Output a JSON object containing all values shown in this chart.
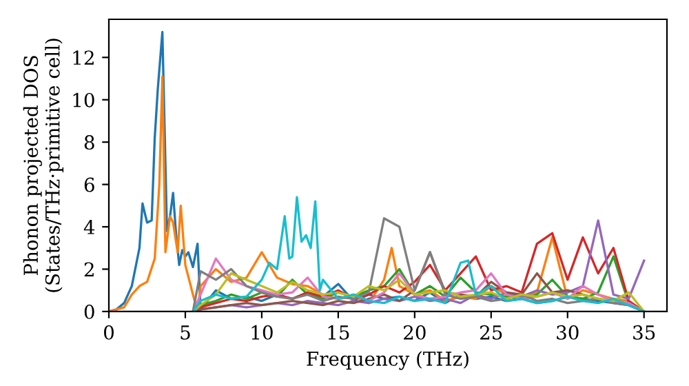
{
  "chart_data": {
    "type": "line",
    "xlabel": "Frequency (THz)",
    "ylabel": "Phonon projected DOS\n(States/THz·primitive cell)",
    "xlim": [
      0,
      36.5
    ],
    "ylim": [
      0,
      13.8
    ],
    "xticks": [
      0,
      5,
      10,
      15,
      20,
      25,
      30,
      35
    ],
    "yticks": [
      0,
      2,
      4,
      6,
      8,
      10,
      12
    ],
    "grid": false,
    "marker": "none",
    "line_style": "solid",
    "x": [
      5.5,
      6,
      7,
      8,
      9,
      10,
      11,
      12,
      13,
      14,
      15,
      16,
      17,
      18,
      19,
      20,
      21,
      22,
      23,
      24,
      25,
      26,
      27,
      28,
      29,
      30,
      31,
      32,
      33,
      34,
      35
    ],
    "series": [
      {
        "color": "#1f77b4",
        "x": [
          0,
          0.5,
          1,
          1.5,
          2,
          2.2,
          2.5,
          2.8,
          3,
          3.2,
          3.5,
          3.8,
          4,
          4.2,
          4.4,
          4.6,
          4.8,
          5,
          5.2,
          5.5,
          5.8,
          6,
          7,
          8,
          9,
          10,
          11,
          12,
          13,
          14,
          15,
          16,
          17,
          18,
          19,
          20,
          21,
          22,
          23,
          24,
          25,
          26,
          27,
          28,
          29,
          30,
          31,
          32,
          33,
          34,
          35
        ],
        "values": [
          0,
          0.1,
          0.4,
          1.2,
          3.0,
          5.1,
          4.2,
          4.3,
          8.2,
          10.5,
          13.2,
          3.8,
          4.5,
          5.6,
          3.6,
          2.2,
          2.9,
          2.6,
          2.8,
          2.1,
          3.2,
          0.1,
          1.0,
          0.6,
          0.7,
          0.5,
          0.8,
          0.6,
          0.9,
          0.7,
          1.3,
          0.5,
          0.8,
          0.6,
          0.7,
          0.5,
          0.9,
          0.4,
          0.8,
          0.6,
          0.7,
          0.5,
          0.6,
          0.4,
          0.5,
          0.7,
          0.6,
          0.5,
          0.4,
          0.3,
          0
        ]
      },
      {
        "color": "#ff7f0e",
        "x": [
          0,
          1,
          1.5,
          2,
          2.5,
          3,
          3.3,
          3.5,
          3.7,
          4,
          4.2,
          4.5,
          4.7,
          5,
          5.5,
          5.8,
          6,
          7,
          8,
          9,
          10,
          11,
          12,
          13,
          14,
          15,
          16,
          17,
          18,
          18.5,
          19,
          20,
          21,
          22,
          23,
          24,
          25,
          26,
          27,
          28,
          29,
          30,
          31,
          32,
          33,
          34,
          35
        ],
        "values": [
          0,
          0.2,
          0.8,
          1.2,
          1.4,
          2.5,
          6,
          11.1,
          2.8,
          4.5,
          4.2,
          2.8,
          5.0,
          2.2,
          0.8,
          0,
          1.2,
          2.0,
          1.4,
          1.6,
          2.8,
          1.6,
          1.3,
          1.2,
          0.8,
          0.6,
          0.7,
          0.4,
          1.5,
          3.0,
          1.2,
          0.8,
          1.0,
          0.5,
          0.7,
          0.6,
          1.2,
          0.8,
          0.7,
          0.9,
          3.5,
          0.6,
          1.0,
          0.8,
          0.6,
          0.5,
          0
        ]
      },
      {
        "color": "#2ca02c",
        "values": [
          0,
          0.3,
          0.5,
          0.8,
          0.6,
          0.9,
          0.7,
          1.5,
          0.8,
          0.6,
          0.9,
          0.7,
          1.0,
          1.2,
          2.0,
          0.8,
          1.2,
          0.7,
          1.6,
          0.9,
          0.8,
          0.7,
          0.6,
          0.8,
          1.5,
          0.7,
          0.6,
          0.9,
          2.6,
          0.4,
          0
        ]
      },
      {
        "color": "#d62728",
        "values": [
          0,
          0.2,
          0.4,
          0.6,
          0.5,
          0.7,
          0.8,
          0.6,
          0.9,
          0.7,
          1.0,
          0.6,
          0.8,
          1.2,
          0.9,
          1.4,
          2.2,
          1.0,
          1.8,
          2.6,
          1.0,
          1.2,
          0.9,
          3.2,
          3.7,
          1.5,
          3.5,
          1.8,
          3.0,
          0.5,
          0
        ]
      },
      {
        "color": "#9467bd",
        "values": [
          0,
          0.1,
          0.2,
          0.3,
          0.2,
          0.3,
          0.4,
          0.3,
          0.5,
          0.4,
          0.3,
          0.5,
          0.4,
          0.6,
          0.5,
          0.7,
          0.5,
          0.6,
          0.4,
          0.8,
          0.6,
          0.9,
          0.7,
          1.0,
          0.8,
          0.9,
          1.2,
          4.3,
          0.8,
          0.6,
          2.4
        ]
      },
      {
        "color": "#8c564b",
        "values": [
          0,
          0.1,
          0.2,
          0.3,
          0.4,
          0.3,
          0.4,
          0.5,
          0.4,
          0.3,
          0.5,
          0.4,
          0.6,
          0.8,
          0.5,
          1.0,
          2.8,
          0.9,
          0.8,
          0.7,
          1.4,
          0.9,
          0.8,
          1.8,
          0.9,
          1.0,
          0.8,
          0.6,
          0.5,
          0.3,
          0
        ]
      },
      {
        "color": "#e377c2",
        "values": [
          0,
          0.8,
          2.5,
          1.5,
          1.2,
          1.0,
          0.8,
          0.9,
          1.6,
          0.7,
          0.6,
          0.8,
          0.5,
          0.9,
          1.8,
          0.8,
          0.6,
          0.7,
          0.9,
          1.0,
          1.8,
          0.8,
          0.6,
          0.7,
          0.9,
          0.6,
          1.2,
          0.8,
          0.5,
          0.4,
          0
        ]
      },
      {
        "color": "#7f7f7f",
        "values": [
          0,
          1.9,
          1.5,
          2.0,
          1.2,
          0.9,
          0.7,
          0.6,
          0.8,
          0.5,
          0.7,
          0.6,
          0.9,
          4.4,
          4.0,
          1.0,
          2.8,
          0.8,
          0.6,
          0.7,
          0.5,
          0.6,
          0.8,
          0.5,
          0.6,
          0.4,
          0.5,
          0.6,
          0.4,
          0.3,
          0
        ]
      },
      {
        "color": "#bcbd22",
        "values": [
          0,
          0.3,
          0.8,
          1.8,
          1.5,
          1.2,
          0.9,
          1.4,
          1.0,
          0.8,
          0.9,
          0.7,
          1.2,
          1.0,
          1.5,
          0.8,
          0.9,
          1.0,
          0.7,
          0.8,
          0.9,
          0.6,
          0.8,
          0.7,
          0.9,
          0.7,
          0.8,
          0.6,
          0.5,
          0.9,
          0
        ]
      },
      {
        "color": "#17becf",
        "x": [
          5.5,
          6,
          7,
          8,
          9,
          10,
          10.5,
          11,
          11.5,
          11.8,
          12,
          12.3,
          12.6,
          12.9,
          13.2,
          13.5,
          13.8,
          14,
          15,
          16,
          17,
          18,
          19,
          20,
          21,
          22,
          23,
          23.5,
          24,
          25,
          26,
          27,
          28,
          29,
          30,
          31,
          32,
          33,
          34,
          35
        ],
        "values": [
          0,
          0.5,
          0.8,
          0.6,
          0.7,
          1.5,
          2.3,
          2.0,
          4.5,
          2.5,
          2.6,
          5.4,
          3.3,
          3.6,
          3.0,
          5.2,
          1.0,
          1.5,
          0.6,
          0.8,
          0.5,
          0.4,
          0.7,
          0.5,
          0.6,
          0.4,
          2.3,
          2.4,
          0.8,
          1.2,
          0.5,
          0.6,
          0.4,
          0.5,
          0.7,
          0.5,
          0.4,
          0.6,
          0.3,
          0
        ]
      }
    ]
  }
}
